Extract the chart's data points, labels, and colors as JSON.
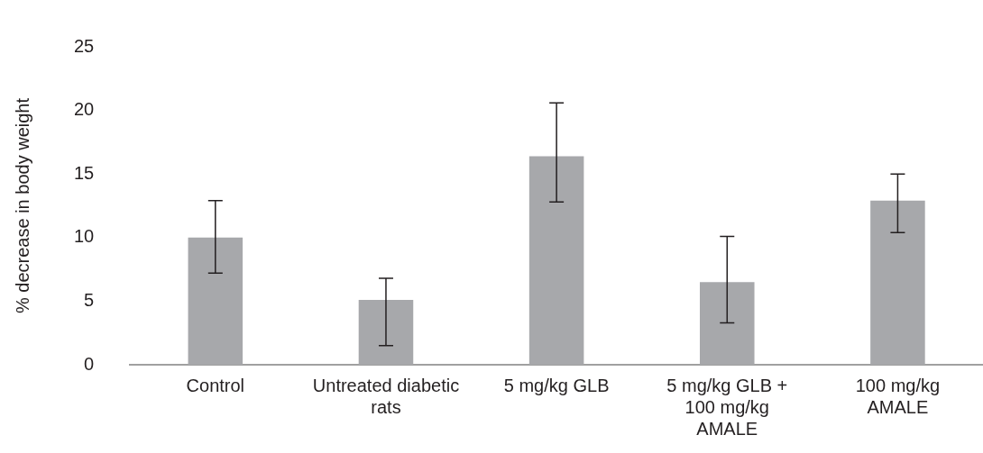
{
  "chart_data": {
    "type": "bar",
    "ylabel": "% decrease in body weight",
    "categories": [
      "Control",
      "Untreated diabetic rats",
      "5 mg/kg GLB",
      "5 mg/kg GLB + 100 mg/kg AMALE",
      "100 mg/kg AMALE"
    ],
    "values": [
      10.0,
      5.1,
      16.4,
      6.5,
      12.9
    ],
    "errors": [
      [
        7.2,
        12.9
      ],
      [
        1.5,
        6.8
      ],
      [
        12.8,
        20.6
      ],
      [
        3.3,
        10.1
      ],
      [
        10.4,
        15.0
      ]
    ],
    "color": "#a7a8ab",
    "ylim": [
      0,
      25
    ],
    "yticks": [
      0,
      5,
      10,
      15,
      20,
      25
    ],
    "grid": false,
    "legend": false
  }
}
